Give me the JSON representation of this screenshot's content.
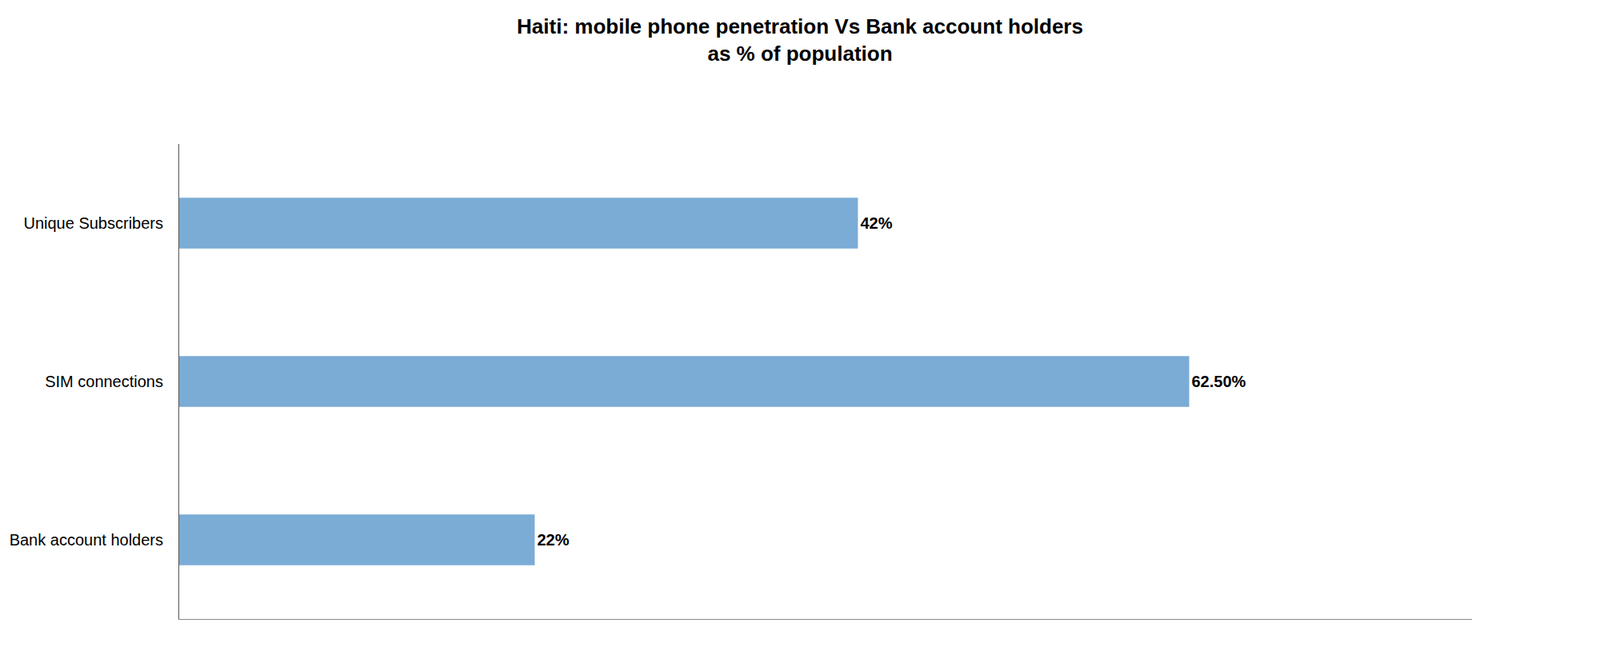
{
  "chart_data": {
    "type": "bar",
    "orientation": "horizontal",
    "title": "Haiti: mobile phone penetration Vs Bank account holders",
    "subtitle": "as % of population",
    "categories": [
      "Unique Subscribers",
      "SIM connections",
      "Bank account holders"
    ],
    "values": [
      42,
      62.5,
      22
    ],
    "value_labels": [
      "42%",
      "62.50%",
      "22%"
    ],
    "data_labels": true,
    "color": "#7aacd6",
    "xlim": [
      0,
      80
    ],
    "grid": false,
    "tick_labels": "y"
  }
}
